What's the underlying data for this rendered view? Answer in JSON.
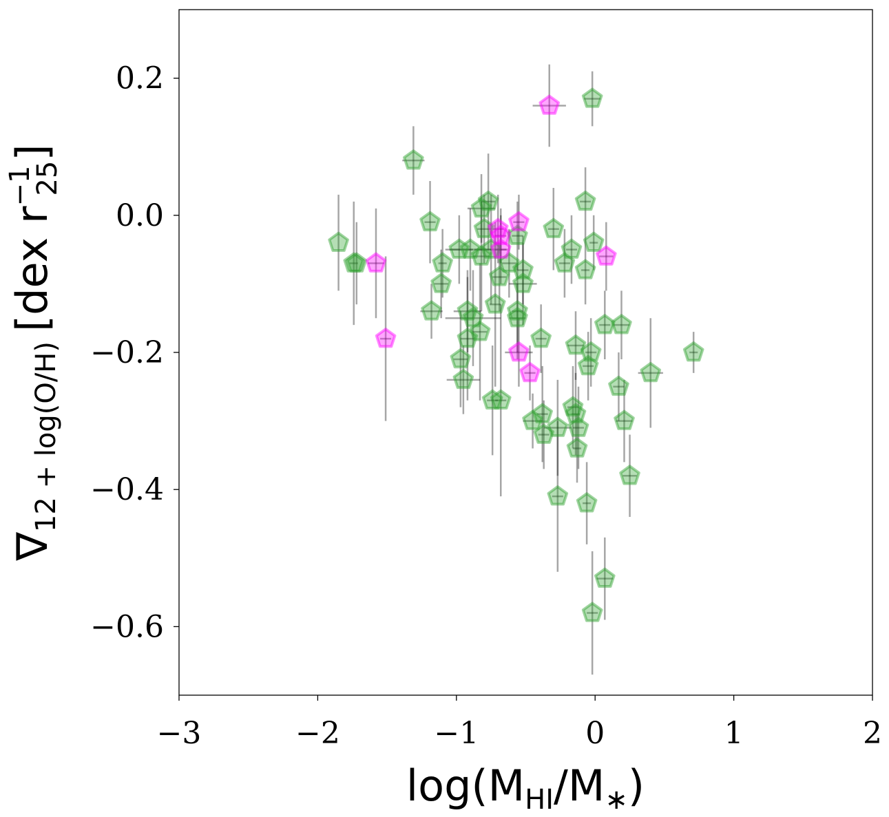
{
  "chart_data": {
    "type": "scatter",
    "xlabel": {
      "base": "log(M",
      "sub1": "HI",
      "mid": "/M",
      "sub2": "∗",
      "end": ")"
    },
    "ylabel": {
      "nabla": "∇",
      "sub": "12 + log(O/H)",
      "open": "[dex r",
      "sup": "−1",
      "sub2": "25",
      "close": "]"
    },
    "xlim": [
      -3,
      2
    ],
    "ylim": [
      -0.7,
      0.3
    ],
    "x_ticks": [
      -3,
      -2,
      -1,
      0,
      1,
      2
    ],
    "x_tick_labels": [
      "−3",
      "−2",
      "−1",
      "0",
      "1",
      "2"
    ],
    "y_ticks": [
      -0.6,
      -0.4,
      -0.2,
      0.0,
      0.2
    ],
    "y_tick_labels": [
      "−0.6",
      "−0.4",
      "−0.2",
      "0.0",
      "0.2"
    ],
    "marker": "pentagon",
    "series": [
      {
        "name": "green",
        "color": "#2ca02c",
        "points": [
          {
            "x": -1.31,
            "y": 0.08,
            "xerr": 0.08,
            "yerr": 0.05
          },
          {
            "x": -1.85,
            "y": -0.04,
            "xerr": 0.0,
            "yerr": 0.07
          },
          {
            "x": -1.74,
            "y": -0.07,
            "xerr": 0.03,
            "yerr": 0.09
          },
          {
            "x": -1.72,
            "y": -0.07,
            "xerr": 0.0,
            "yerr": 0.06
          },
          {
            "x": -1.19,
            "y": -0.01,
            "xerr": 0.04,
            "yerr": 0.06
          },
          {
            "x": -1.1,
            "y": -0.07,
            "xerr": 0.03,
            "yerr": 0.05
          },
          {
            "x": -1.11,
            "y": -0.1,
            "xerr": 0.05,
            "yerr": 0.05
          },
          {
            "x": -1.18,
            "y": -0.14,
            "xerr": 0.08,
            "yerr": 0.04
          },
          {
            "x": -0.98,
            "y": -0.05,
            "xerr": 0.1,
            "yerr": 0.05
          },
          {
            "x": -0.9,
            "y": -0.05,
            "xerr": 0.15,
            "yerr": 0.06
          },
          {
            "x": -0.92,
            "y": -0.14,
            "xerr": 0.1,
            "yerr": 0.06
          },
          {
            "x": -0.88,
            "y": -0.15,
            "xerr": 0.2,
            "yerr": 0.07
          },
          {
            "x": -0.92,
            "y": -0.18,
            "xerr": 0.05,
            "yerr": 0.09
          },
          {
            "x": -0.97,
            "y": -0.21,
            "xerr": 0.05,
            "yerr": 0.07
          },
          {
            "x": -0.95,
            "y": -0.24,
            "xerr": 0.12,
            "yerr": 0.05
          },
          {
            "x": -0.82,
            "y": 0.01,
            "xerr": 0.1,
            "yerr": 0.05
          },
          {
            "x": -0.77,
            "y": 0.02,
            "xerr": 0.05,
            "yerr": 0.07
          },
          {
            "x": -0.8,
            "y": -0.02,
            "xerr": 0.05,
            "yerr": 0.05
          },
          {
            "x": -0.82,
            "y": -0.06,
            "xerr": 0.06,
            "yerr": 0.08
          },
          {
            "x": -0.75,
            "y": -0.05,
            "xerr": 0.12,
            "yerr": 0.08
          },
          {
            "x": -0.83,
            "y": -0.17,
            "xerr": 0.05,
            "yerr": 0.1
          },
          {
            "x": -0.72,
            "y": -0.13,
            "xerr": 0.04,
            "yerr": 0.12
          },
          {
            "x": -0.69,
            "y": -0.09,
            "xerr": 0.05,
            "yerr": 0.05
          },
          {
            "x": -0.74,
            "y": -0.27,
            "xerr": 0.04,
            "yerr": 0.08
          },
          {
            "x": -0.68,
            "y": -0.27,
            "xerr": 0.04,
            "yerr": 0.14
          },
          {
            "x": -0.62,
            "y": -0.07,
            "xerr": 0.05,
            "yerr": 0.05
          },
          {
            "x": -0.56,
            "y": -0.03,
            "xerr": 0.04,
            "yerr": 0.05
          },
          {
            "x": -0.52,
            "y": -0.08,
            "xerr": 0.04,
            "yerr": 0.05
          },
          {
            "x": -0.52,
            "y": -0.1,
            "xerr": 0.1,
            "yerr": 0.06
          },
          {
            "x": -0.56,
            "y": -0.14,
            "xerr": 0.04,
            "yerr": 0.07
          },
          {
            "x": -0.56,
            "y": -0.15,
            "xerr": 0.06,
            "yerr": 0.05
          },
          {
            "x": -0.39,
            "y": -0.18,
            "xerr": 0.04,
            "yerr": 0.05
          },
          {
            "x": -0.45,
            "y": -0.3,
            "xerr": 0.07,
            "yerr": 0.04
          },
          {
            "x": -0.38,
            "y": -0.29,
            "xerr": 0.04,
            "yerr": 0.07
          },
          {
            "x": -0.37,
            "y": -0.32,
            "xerr": 0.04,
            "yerr": 0.05
          },
          {
            "x": -0.3,
            "y": -0.02,
            "xerr": 0.04,
            "yerr": 0.06
          },
          {
            "x": -0.22,
            "y": -0.07,
            "xerr": 0.04,
            "yerr": 0.05
          },
          {
            "x": -0.17,
            "y": -0.05,
            "xerr": 0.04,
            "yerr": 0.05
          },
          {
            "x": -0.14,
            "y": -0.19,
            "xerr": 0.06,
            "yerr": 0.05
          },
          {
            "x": -0.16,
            "y": -0.28,
            "xerr": 0.04,
            "yerr": 0.06
          },
          {
            "x": -0.14,
            "y": -0.29,
            "xerr": 0.03,
            "yerr": 0.06
          },
          {
            "x": -0.27,
            "y": -0.31,
            "xerr": 0.1,
            "yerr": 0.07
          },
          {
            "x": -0.12,
            "y": -0.31,
            "xerr": 0.04,
            "yerr": 0.06
          },
          {
            "x": -0.13,
            "y": -0.34,
            "xerr": 0.03,
            "yerr": 0.05
          },
          {
            "x": -0.27,
            "y": -0.41,
            "xerr": 0.04,
            "yerr": 0.11
          },
          {
            "x": -0.07,
            "y": 0.02,
            "xerr": 0.04,
            "yerr": 0.05
          },
          {
            "x": -0.07,
            "y": -0.08,
            "xerr": 0.03,
            "yerr": 0.05
          },
          {
            "x": -0.01,
            "y": -0.04,
            "xerr": 0.03,
            "yerr": 0.04
          },
          {
            "x": -0.02,
            "y": 0.17,
            "xerr": 0.06,
            "yerr": 0.04
          },
          {
            "x": -0.03,
            "y": -0.2,
            "xerr": 0.04,
            "yerr": 0.05
          },
          {
            "x": -0.05,
            "y": -0.22,
            "xerr": 0.04,
            "yerr": 0.05
          },
          {
            "x": -0.06,
            "y": -0.42,
            "xerr": 0.03,
            "yerr": 0.06
          },
          {
            "x": 0.07,
            "y": -0.16,
            "xerr": 0.04,
            "yerr": 0.05
          },
          {
            "x": 0.19,
            "y": -0.16,
            "xerr": 0.06,
            "yerr": 0.05
          },
          {
            "x": 0.17,
            "y": -0.25,
            "xerr": 0.04,
            "yerr": 0.05
          },
          {
            "x": 0.21,
            "y": -0.3,
            "xerr": 0.06,
            "yerr": 0.06
          },
          {
            "x": 0.25,
            "y": -0.38,
            "xerr": 0.05,
            "yerr": 0.06
          },
          {
            "x": 0.07,
            "y": -0.53,
            "xerr": 0.06,
            "yerr": 0.06
          },
          {
            "x": -0.02,
            "y": -0.58,
            "xerr": 0.04,
            "yerr": 0.09
          },
          {
            "x": 0.4,
            "y": -0.23,
            "xerr": 0.09,
            "yerr": 0.08
          },
          {
            "x": 0.71,
            "y": -0.2,
            "xerr": 0.03,
            "yerr": 0.03
          }
        ]
      },
      {
        "name": "magenta",
        "color": "#ff00ff",
        "points": [
          {
            "x": -0.33,
            "y": 0.16,
            "xerr": 0.12,
            "yerr": 0.06
          },
          {
            "x": -1.58,
            "y": -0.07,
            "xerr": 0.06,
            "yerr": 0.08
          },
          {
            "x": -1.51,
            "y": -0.18,
            "xerr": 0.04,
            "yerr": 0.12
          },
          {
            "x": -0.7,
            "y": -0.02,
            "xerr": 0.04,
            "yerr": 0.05
          },
          {
            "x": -0.68,
            "y": -0.03,
            "xerr": 0.04,
            "yerr": 0.04
          },
          {
            "x": -0.68,
            "y": -0.05,
            "xerr": 0.04,
            "yerr": 0.05
          },
          {
            "x": -0.55,
            "y": -0.01,
            "xerr": 0.04,
            "yerr": 0.04
          },
          {
            "x": -0.55,
            "y": -0.2,
            "xerr": 0.1,
            "yerr": 0.05
          },
          {
            "x": -0.47,
            "y": -0.23,
            "xerr": 0.04,
            "yerr": 0.04
          },
          {
            "x": 0.08,
            "y": -0.06,
            "xerr": 0.05,
            "yerr": 0.05
          }
        ]
      }
    ]
  }
}
